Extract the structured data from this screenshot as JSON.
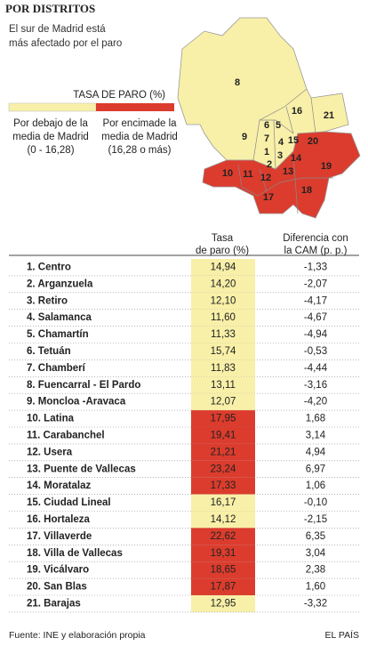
{
  "header": {
    "title": "POR DISTRITOS",
    "subtitle": [
      "El sur de Madrid está",
      "más afectado por el paro"
    ]
  },
  "legend": {
    "title": "TASA DE PARO (%)",
    "below": {
      "color": "#f8f0a8",
      "lines": [
        "Por debajo de la",
        "media de Madrid",
        "(0 - 16,28)"
      ]
    },
    "above": {
      "color": "#dc3c2d",
      "lines": [
        "Por encimade la",
        "media de Madrid",
        "(16,28 o más)"
      ]
    }
  },
  "map": {
    "labels": [
      "8",
      "16",
      "21",
      "6",
      "5",
      "9",
      "7",
      "4",
      "15",
      "20",
      "1",
      "3",
      "14",
      "2",
      "19",
      "10",
      "11",
      "13",
      "12",
      "18",
      "17"
    ]
  },
  "table": {
    "columns": [
      [
        "Tasa",
        "de paro (%)"
      ],
      [
        "Diferencia con",
        "la CAM (p. p.)"
      ]
    ],
    "rows": [
      {
        "name": "1. Centro",
        "rate": "14,94",
        "diff": "-1,33",
        "level": "below"
      },
      {
        "name": "2. Arganzuela",
        "rate": "14,20",
        "diff": "-2,07",
        "level": "below"
      },
      {
        "name": "3. Retiro",
        "rate": "12,10",
        "diff": "-4,17",
        "level": "below"
      },
      {
        "name": "4. Salamanca",
        "rate": "11,60",
        "diff": "-4,67",
        "level": "below"
      },
      {
        "name": "5. Chamartín",
        "rate": "11,33",
        "diff": "-4,94",
        "level": "below"
      },
      {
        "name": "6. Tetuán",
        "rate": "15,74",
        "diff": "-0,53",
        "level": "below"
      },
      {
        "name": "7. Chamberí",
        "rate": "11,83",
        "diff": "-4,44",
        "level": "below"
      },
      {
        "name": "8. Fuencarral - El Pardo",
        "rate": "13,11",
        "diff": "-3,16",
        "level": "below"
      },
      {
        "name": "9. Moncloa -Aravaca",
        "rate": "12,07",
        "diff": "-4,20",
        "level": "below"
      },
      {
        "name": "10. Latina",
        "rate": "17,95",
        "diff": "1,68",
        "level": "above"
      },
      {
        "name": "11. Carabanchel",
        "rate": "19,41",
        "diff": "3,14",
        "level": "above"
      },
      {
        "name": "12. Usera",
        "rate": "21,21",
        "diff": "4,94",
        "level": "above"
      },
      {
        "name": "13. Puente de Vallecas",
        "rate": "23,24",
        "diff": "6,97",
        "level": "above"
      },
      {
        "name": "14. Moratalaz",
        "rate": "17,33",
        "diff": "1,06",
        "level": "above"
      },
      {
        "name": "15. Ciudad Lineal",
        "rate": "16,17",
        "diff": "-0,10",
        "level": "below"
      },
      {
        "name": "16. Hortaleza",
        "rate": "14,12",
        "diff": "-2,15",
        "level": "below"
      },
      {
        "name": "17. Villaverde",
        "rate": "22,62",
        "diff": "6,35",
        "level": "above"
      },
      {
        "name": "18. Villa de Vallecas",
        "rate": "19,31",
        "diff": "3,04",
        "level": "above"
      },
      {
        "name": "19. Vicálvaro",
        "rate": "18,65",
        "diff": "2,38",
        "level": "above"
      },
      {
        "name": "20. San Blas",
        "rate": "17,87",
        "diff": "1,60",
        "level": "above"
      },
      {
        "name": "21. Barajas",
        "rate": "12,95",
        "diff": "-3,32",
        "level": "below"
      }
    ]
  },
  "footer": {
    "source": "Fuente: INE y elaboración propia",
    "credit": "EL PAÍS"
  }
}
